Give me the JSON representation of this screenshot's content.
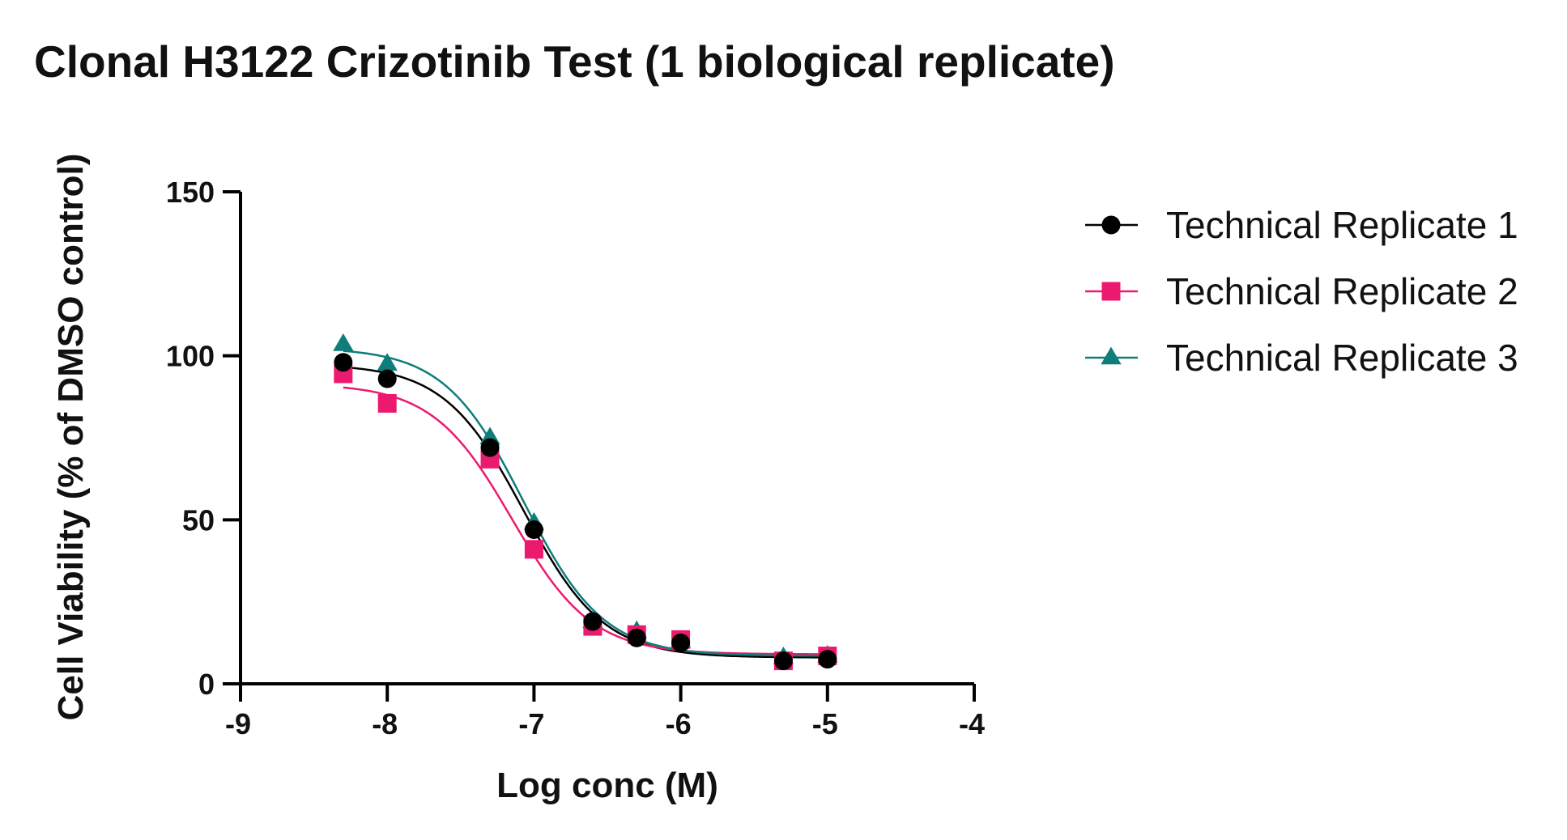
{
  "title": "Clonal H3122 Crizotinib Test (1 biological replicate)",
  "chart_data": {
    "type": "scatter",
    "title": "Clonal H3122 Crizotinib Test (1 biological replicate)",
    "xlabel": "Log conc (M)",
    "ylabel": "Cell Viability (% of DMSO control)",
    "xlim": [
      -9,
      -4
    ],
    "ylim": [
      0,
      150
    ],
    "xticks": [
      -9,
      -8,
      -7,
      -6,
      -5,
      -4
    ],
    "xtick_labels": [
      "-9",
      "-8",
      "-7",
      "-6",
      "-5",
      "-4"
    ],
    "yticks": [
      0,
      50,
      100,
      150
    ],
    "ytick_labels": [
      "0",
      "50",
      "100",
      "150"
    ],
    "grid": false,
    "legend_position": "right",
    "series": [
      {
        "name": "Technical Replicate 1",
        "color": "#000000",
        "marker": "circle",
        "x": [
          -8.3,
          -8.0,
          -7.3,
          -7.0,
          -6.6,
          -6.3,
          -6.0,
          -5.3,
          -5.0
        ],
        "y": [
          98,
          93,
          72,
          47,
          19,
          14,
          12.5,
          7,
          7.5
        ],
        "fit": {
          "top": 97.5,
          "bottom": 8,
          "logIC50": -7.07,
          "hill": -1.6
        }
      },
      {
        "name": "Technical Replicate 2",
        "color": "#ec1a6f",
        "marker": "square",
        "x": [
          -8.3,
          -8.0,
          -7.3,
          -7.0,
          -6.6,
          -6.3,
          -6.0,
          -5.3,
          -5.0
        ],
        "y": [
          94.5,
          85.5,
          68.5,
          41,
          17.5,
          15,
          13.5,
          7,
          8.5
        ],
        "fit": {
          "top": 91.5,
          "bottom": 9,
          "logIC50": -7.15,
          "hill": -1.6
        }
      },
      {
        "name": "Technical Replicate 3",
        "color": "#0f7d7a",
        "marker": "triangle",
        "x": [
          -8.3,
          -8.0,
          -7.3,
          -7.0,
          -6.6,
          -6.3,
          -6.0,
          -5.3,
          -5.0
        ],
        "y": [
          103.5,
          97.5,
          75,
          49,
          19,
          16,
          13,
          8,
          8.5
        ],
        "fit": {
          "top": 102.5,
          "bottom": 8.5,
          "logIC50": -7.07,
          "hill": -1.6
        }
      }
    ]
  }
}
